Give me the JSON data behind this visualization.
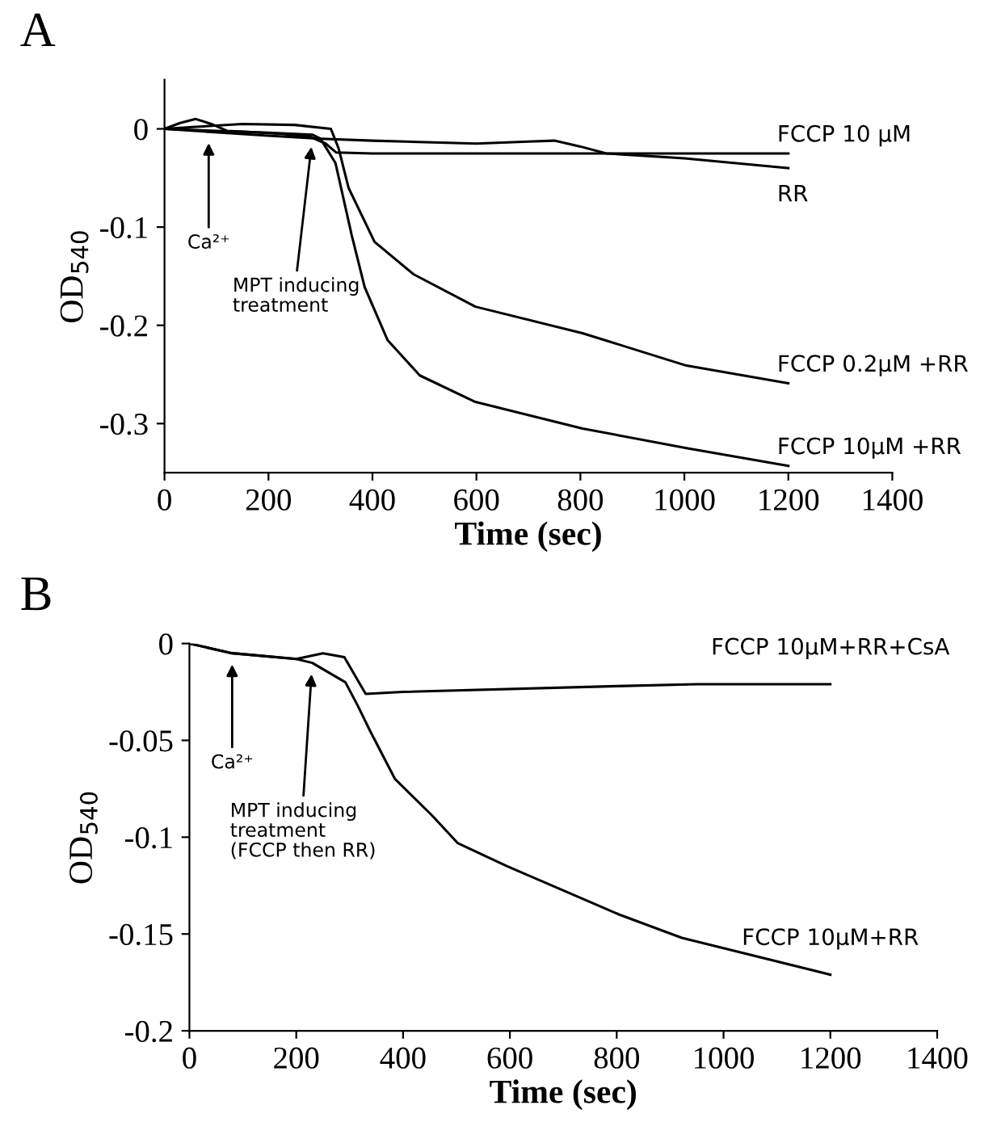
{
  "chart_data": [
    {
      "type": "line",
      "title": "A",
      "xlabel": "Time (sec)",
      "ylabel": "OD$_{540}$",
      "xlim": [
        0,
        1400
      ],
      "ylim": [
        -0.35,
        0.05
      ],
      "xticks": [
        0,
        200,
        400,
        600,
        800,
        1000,
        1200,
        1400
      ],
      "yticks": [
        0,
        -0.1,
        -0.2,
        -0.3
      ],
      "grid": false,
      "legend": false,
      "marker": "none",
      "line_style": "solid",
      "annotations": [
        {
          "text": "Ca²⁺",
          "x": 85,
          "y": -0.003
        },
        {
          "text": "MPT inducing\ntreatment",
          "x": 285,
          "y": -0.007
        }
      ],
      "series": [
        {
          "name": "FCCP 10 µM",
          "color": "#000000",
          "x": [
            0,
            30,
            60,
            90,
            120,
            160,
            220,
            280,
            310,
            330,
            400,
            600,
            800,
            1000,
            1200
          ],
          "values": [
            0,
            0.006,
            0.01,
            0.005,
            -0.002,
            -0.003,
            -0.005,
            -0.008,
            -0.015,
            -0.024,
            -0.025,
            -0.025,
            -0.025,
            -0.025,
            -0.025
          ]
        },
        {
          "name": "RR",
          "color": "#000000",
          "x": [
            0,
            85,
            200,
            300,
            400,
            600,
            700,
            750,
            800,
            850,
            1000,
            1200
          ],
          "values": [
            0,
            -0.003,
            -0.007,
            -0.01,
            -0.012,
            -0.015,
            -0.013,
            -0.012,
            -0.018,
            -0.025,
            -0.03,
            -0.04
          ]
        },
        {
          "name": "FCCP 0.2µM +RR",
          "color": "#000000",
          "x": [
            0,
            60,
            150,
            250,
            320,
            335,
            354,
            404,
            479,
            598,
            804,
            1004,
            1200
          ],
          "values": [
            0,
            0.002,
            0.005,
            0.004,
            0.0,
            -0.02,
            -0.06,
            -0.115,
            -0.148,
            -0.181,
            -0.208,
            -0.241,
            -0.259
          ]
        },
        {
          "name": "FCCP 10µM +RR",
          "color": "#000000",
          "x": [
            0,
            100,
            200,
            285,
            300,
            329,
            360,
            385,
            429,
            491,
            598,
            804,
            1004,
            1200
          ],
          "values": [
            0,
            -0.002,
            -0.004,
            -0.006,
            -0.01,
            -0.035,
            -0.108,
            -0.161,
            -0.215,
            -0.251,
            -0.278,
            -0.305,
            -0.325,
            -0.343
          ]
        }
      ]
    },
    {
      "type": "line",
      "title": "B",
      "xlabel": "Time (sec)",
      "ylabel": "OD$_{540}$",
      "xlim": [
        0,
        1400
      ],
      "ylim": [
        -0.2,
        0
      ],
      "xticks": [
        0,
        200,
        400,
        600,
        800,
        1000,
        1200,
        1400
      ],
      "yticks": [
        0,
        -0.05,
        -0.1,
        -0.15,
        -0.2
      ],
      "grid": false,
      "legend": false,
      "marker": "none",
      "line_style": "solid",
      "annotations": [
        {
          "text": "Ca²⁺",
          "x": 80,
          "y": -0.005
        },
        {
          "text": "MPT inducing\ntreatment\n(FCCP then RR)",
          "x": 230,
          "y": -0.01
        }
      ],
      "series": [
        {
          "name": "FCCP 10µM+RR+CsA",
          "color": "#000000",
          "x": [
            0,
            80,
            200,
            250,
            290,
            330,
            400,
            800,
            950,
            1200
          ],
          "values": [
            0,
            -0.005,
            -0.008,
            -0.005,
            -0.007,
            -0.026,
            -0.025,
            -0.022,
            -0.021,
            -0.021
          ]
        },
        {
          "name": "FCCP 10µM+RR",
          "color": "#000000",
          "x": [
            0,
            80,
            200,
            230,
            292,
            315,
            338,
            385,
            455,
            502,
            595,
            805,
            922,
            1200
          ],
          "values": [
            0,
            -0.005,
            -0.008,
            -0.01,
            -0.02,
            -0.032,
            -0.045,
            -0.07,
            -0.089,
            -0.103,
            -0.115,
            -0.14,
            -0.152,
            -0.171
          ]
        }
      ]
    }
  ]
}
